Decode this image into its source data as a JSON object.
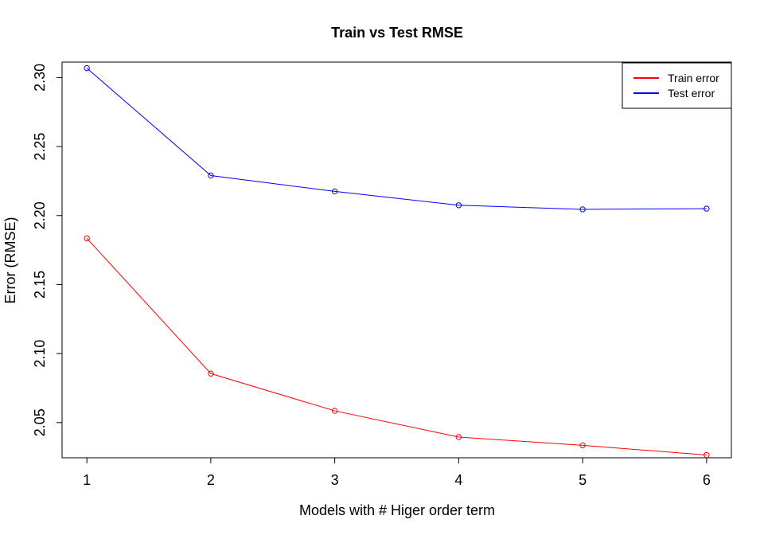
{
  "chart_data": {
    "type": "line",
    "title": "Train vs Test RMSE",
    "xlabel": "Models with # Higer order term",
    "ylabel": "Error (RMSE)",
    "x": [
      1,
      2,
      3,
      4,
      5,
      6
    ],
    "xticks": [
      "1",
      "2",
      "3",
      "4",
      "5",
      "6"
    ],
    "yticks": [
      "2.05",
      "2.10",
      "2.15",
      "2.20",
      "2.25",
      "2.30"
    ],
    "ylim": [
      2.0245,
      2.3112
    ],
    "xlim": [
      0.8,
      6.2
    ],
    "grid": false,
    "legend_position": "top-right",
    "series": [
      {
        "name": "Train error",
        "color": "#ff0000",
        "values": [
          2.1835,
          2.0855,
          2.0585,
          2.0395,
          2.0335,
          2.0265
        ]
      },
      {
        "name": "Test error",
        "color": "#0000ff",
        "values": [
          2.3068,
          2.229,
          2.2175,
          2.2075,
          2.2045,
          2.205
        ]
      }
    ]
  }
}
